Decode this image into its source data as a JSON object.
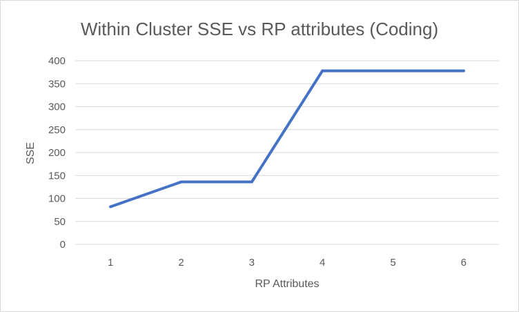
{
  "chart_data": {
    "type": "line",
    "title": "Within Cluster SSE vs RP attributes (Coding)",
    "xlabel": "RP Attributes",
    "ylabel": "SSE",
    "categories": [
      "1",
      "2",
      "3",
      "4",
      "5",
      "6"
    ],
    "series": [
      {
        "values": [
          82,
          136,
          136,
          378,
          378,
          378
        ],
        "color": "#4472C4"
      }
    ],
    "ylim": [
      0,
      400
    ],
    "yticks": [
      "0",
      "50",
      "100",
      "150",
      "200",
      "250",
      "300",
      "350",
      "400"
    ],
    "grid": true,
    "legend": "none",
    "colors": {
      "line": "#4472C4",
      "grid": "#d9d9d9",
      "text": "#595959"
    }
  }
}
